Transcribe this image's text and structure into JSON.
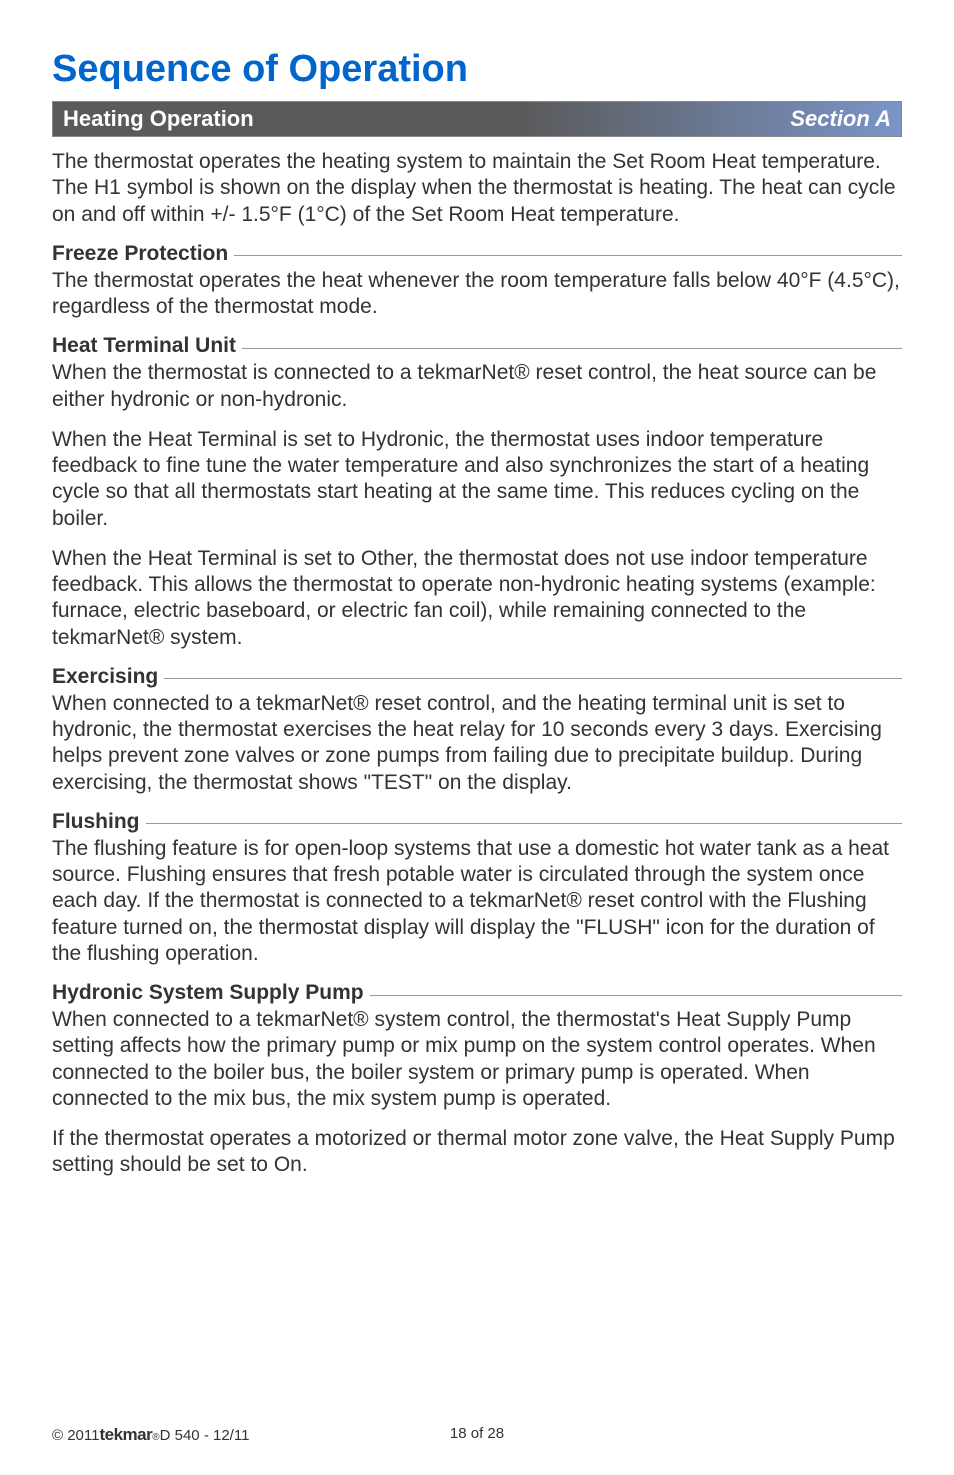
{
  "title": "Sequence of Operation",
  "sectionBar": {
    "left": "Heating Operation",
    "right": "Section A"
  },
  "intro": "The thermostat operates the heating system to maintain the Set Room Heat temperature. The H1 symbol is shown on the display when the thermostat is heating. The heat can cycle on and off within +/- 1.5°F (1°C) of the Set Room Heat temperature.",
  "freeze": {
    "heading": "Freeze Protection",
    "body": "The thermostat operates the heat whenever the room temperature falls below 40°F (4.5°C), regardless of the thermostat mode."
  },
  "heatTerminal": {
    "heading": "Heat Terminal Unit",
    "p1": "When the thermostat is connected to a tekmarNet® reset control, the heat source can be either hydronic or non-hydronic.",
    "p2": "When the Heat Terminal is set to Hydronic, the thermostat uses indoor temperature feedback to fine tune the water temperature and also synchronizes the start of a heating cycle so that all thermostats start heating at the same time. This reduces cycling on the boiler.",
    "p3": "When the Heat Terminal is set to Other, the thermostat does not use indoor temperature feedback. This allows the thermostat to operate non-hydronic heating systems (example: furnace, electric baseboard, or electric fan coil), while remaining connected to the tekmarNet® system."
  },
  "exercising": {
    "heading": "Exercising",
    "body": "When connected to a tekmarNet® reset control, and the heating terminal unit is set to hydronic, the thermostat exercises the heat relay for 10 seconds every 3 days. Exercising helps prevent zone valves or zone pumps from failing due to precipitate buildup. During exercising, the thermostat shows \"TEST\" on the display."
  },
  "flushing": {
    "heading": "Flushing",
    "body": "The flushing feature is for open-loop systems that use a domestic hot water tank as a heat source. Flushing ensures that fresh potable water is circulated through the system once each day. If the thermostat is connected to a tekmarNet® reset control with the Flushing feature turned on, the thermostat display will display the \"FLUSH\" icon for the duration of the flushing operation."
  },
  "hydronic": {
    "heading": "Hydronic System Supply Pump",
    "p1": "When connected to a tekmarNet® system control, the thermostat's Heat Supply Pump setting affects how the primary pump or mix pump on the system control operates. When connected to the boiler bus, the boiler system or primary pump is operated. When connected to the mix bus, the mix system pump is operated.",
    "p2": "If the thermostat operates a motorized or thermal motor zone valve, the Heat Supply Pump setting should be set to On."
  },
  "footer": {
    "copyright": "© 2011 ",
    "brand": "tekmar",
    "reg": "®",
    "doc": " D 540 - 12/11",
    "page": "18 of 28"
  },
  "colors": {
    "titleColor": "#0066cc",
    "barGradientStart": "#5a5a5a",
    "barGradientEnd": "#7a95c8",
    "textColor": "#333333",
    "ruleColor": "#999999"
  }
}
